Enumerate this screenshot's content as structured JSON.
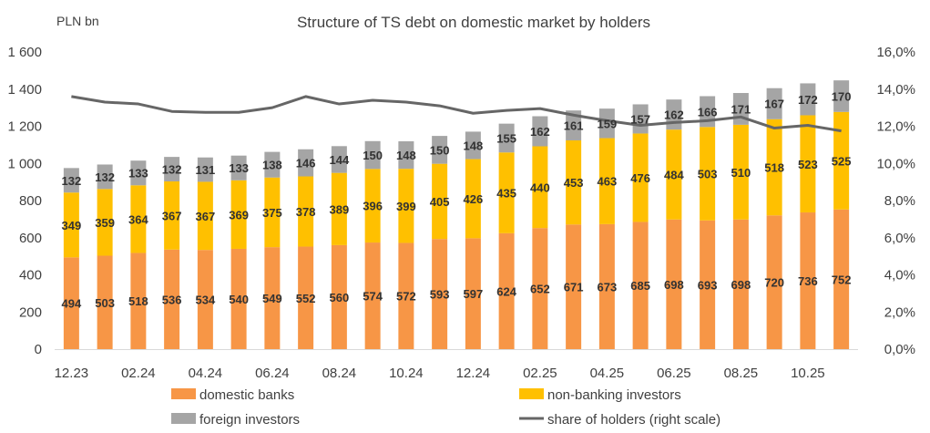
{
  "chart_data": {
    "type": "bar",
    "stacked": true,
    "title": "Structure of TS debt on domestic market by holders",
    "unit_label": "PLN bn",
    "categories": [
      "12.23",
      "01.24",
      "02.24",
      "03.24",
      "04.24",
      "05.24",
      "06.24",
      "07.24",
      "08.24",
      "09.24",
      "10.24",
      "11.24",
      "12.24",
      "01.25",
      "02.25",
      "03.25",
      "04.25",
      "05.25",
      "06.25",
      "07.25",
      "08.25",
      "09.25",
      "10.25",
      "11.25"
    ],
    "x_tick_labels": [
      "12.23",
      "",
      "02.24",
      "",
      "04.24",
      "",
      "06.24",
      "",
      "08.24",
      "",
      "10.24",
      "",
      "12.24",
      "",
      "02.25",
      "",
      "04.25",
      "",
      "06.25",
      "",
      "08.25",
      "",
      "10.25",
      ""
    ],
    "ylim": [
      0,
      1600
    ],
    "y_ticks": [
      0,
      200,
      400,
      600,
      800,
      1000,
      1200,
      1400,
      1600
    ],
    "y_tick_labels": [
      "0",
      "200",
      "400",
      "600",
      "800",
      "1 000",
      "1 200",
      "1 400",
      "1 600"
    ],
    "y2lim": [
      0,
      16
    ],
    "y2_ticks": [
      0,
      2,
      4,
      6,
      8,
      10,
      12,
      14,
      16
    ],
    "y2_tick_labels": [
      "0,0%",
      "2,0%",
      "4,0%",
      "6,0%",
      "8,0%",
      "10,0%",
      "12,0%",
      "14,0%",
      "16,0%"
    ],
    "grid": false,
    "legend_position": "bottom",
    "series": [
      {
        "name": "domestic banks",
        "color": "#f79646",
        "values": [
          494,
          503,
          518,
          536,
          534,
          540,
          549,
          552,
          560,
          574,
          572,
          593,
          597,
          624,
          652,
          671,
          673,
          685,
          698,
          693,
          698,
          720,
          736,
          752
        ]
      },
      {
        "name": "non-banking investors",
        "color": "#ffc000",
        "values": [
          349,
          359,
          364,
          367,
          367,
          369,
          375,
          378,
          389,
          396,
          399,
          405,
          426,
          435,
          440,
          453,
          463,
          476,
          484,
          503,
          510,
          518,
          523,
          525
        ]
      },
      {
        "name": "foreign investors",
        "color": "#a5a5a5",
        "values": [
          132,
          132,
          133,
          132,
          131,
          133,
          138,
          146,
          144,
          150,
          148,
          150,
          148,
          155,
          162,
          161,
          159,
          157,
          162,
          166,
          171,
          167,
          172,
          170
        ]
      }
    ],
    "line_series": {
      "name": "share of holders  (right scale)",
      "color": "#666666",
      "axis": "right",
      "values": [
        13.6,
        13.3,
        13.2,
        12.8,
        12.75,
        12.75,
        13.0,
        13.6,
        13.2,
        13.4,
        13.3,
        13.1,
        12.7,
        12.85,
        12.95,
        12.6,
        12.3,
        12.05,
        12.2,
        12.3,
        12.5,
        11.9,
        12.05,
        11.75
      ]
    }
  }
}
